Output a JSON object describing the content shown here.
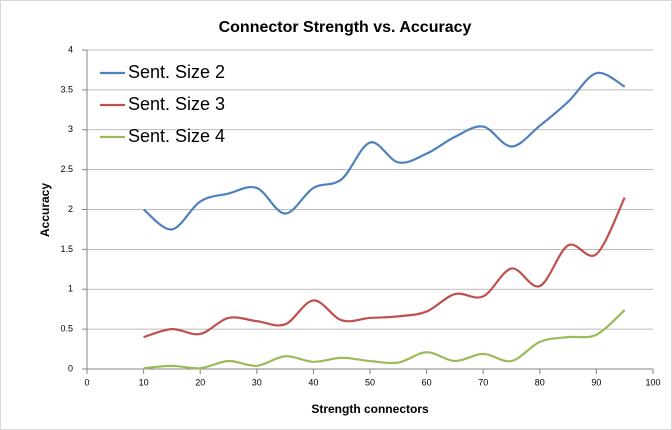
{
  "chart_data": {
    "type": "line",
    "title": "Connector Strength vs. Accuracy",
    "x_label": "Strength connectors",
    "y_label": "Accuracy",
    "x": [
      10,
      15,
      20,
      25,
      30,
      35,
      40,
      45,
      50,
      55,
      60,
      65,
      70,
      75,
      80,
      85,
      90,
      95
    ],
    "series": [
      {
        "name": "Sent. Size 2",
        "color": "#4f81bd",
        "values": [
          2.0,
          1.75,
          2.1,
          2.2,
          2.27,
          1.95,
          2.27,
          2.38,
          2.84,
          2.59,
          2.7,
          2.91,
          3.04,
          2.79,
          3.05,
          3.35,
          3.71,
          3.54
        ]
      },
      {
        "name": "Sent. Size 3",
        "color": "#c0504d",
        "values": [
          0.4,
          0.5,
          0.44,
          0.64,
          0.6,
          0.56,
          0.86,
          0.61,
          0.64,
          0.66,
          0.72,
          0.94,
          0.91,
          1.26,
          1.04,
          1.55,
          1.44,
          2.15
        ]
      },
      {
        "name": "Sent. Size 4",
        "color": "#9bbb59",
        "values": [
          0.01,
          0.04,
          0.01,
          0.1,
          0.04,
          0.16,
          0.09,
          0.14,
          0.1,
          0.08,
          0.21,
          0.1,
          0.19,
          0.1,
          0.34,
          0.4,
          0.43,
          0.74
        ]
      }
    ],
    "xlim": [
      0,
      100
    ],
    "xticks": [
      0,
      10,
      20,
      30,
      40,
      50,
      60,
      70,
      80,
      90,
      100
    ],
    "ylim": [
      0,
      4
    ],
    "yticks": [
      0,
      0.5,
      1,
      1.5,
      2,
      2.5,
      3,
      3.5,
      4
    ],
    "grid": true,
    "legend": "upper left",
    "smooth": true
  }
}
